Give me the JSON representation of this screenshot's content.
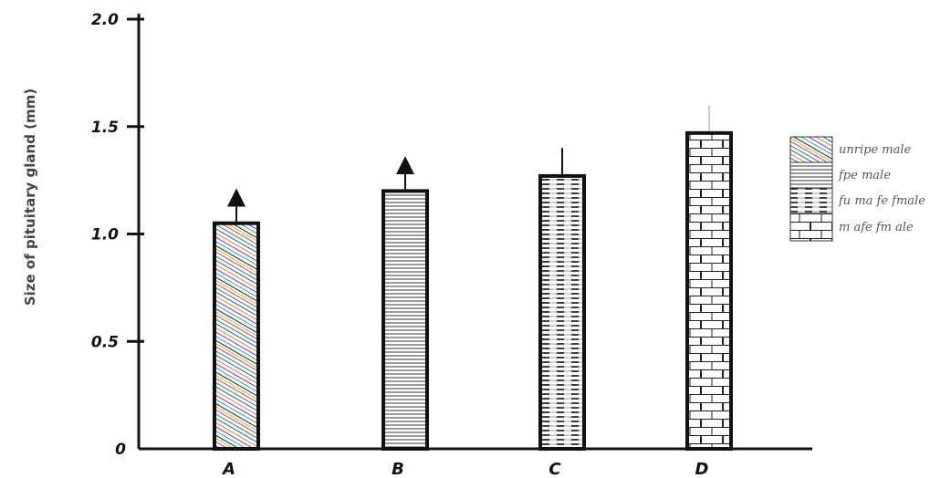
{
  "chart_data": {
    "type": "bar",
    "title": "",
    "xlabel": "",
    "ylabel": "Size of pituitary gland (mm)",
    "categories": [
      "A",
      "B",
      "C",
      "D"
    ],
    "values": [
      1.05,
      1.2,
      1.27,
      1.47
    ],
    "errors": [
      0.12,
      0.12,
      0.13,
      0.13
    ],
    "ylim": [
      0,
      2.0
    ],
    "yticks": [
      0,
      0.5,
      1.0,
      1.5,
      2.0
    ],
    "ytick_labels": [
      "0",
      "0.5",
      "1.0",
      "1.5",
      "2.0"
    ],
    "grid": false,
    "legend": {
      "placement": "right",
      "entries": [
        "unripe male",
        "fpe male",
        "fu ma fe fmale",
        "m afe fm ale"
      ]
    },
    "patterns": [
      "colored-diagonal",
      "horizontal-lines",
      "dashed-lines",
      "brick"
    ]
  }
}
